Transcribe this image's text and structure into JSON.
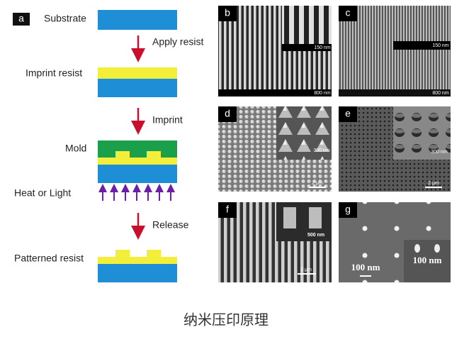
{
  "panel_a": {
    "label": "a",
    "steps": {
      "substrate": "Substrate",
      "apply": "Apply resist",
      "imprint_resist": "Imprint resist",
      "imprint": "Imprint",
      "mold": "Mold",
      "heat": "Heat or Light",
      "release": "Release",
      "patterned": "Patterned resist"
    }
  },
  "panels": [
    {
      "label": "b",
      "inset_scale": "150 nm",
      "scale": "800 nm"
    },
    {
      "label": "c",
      "inset_scale": "150 nm",
      "scale": "800 nm"
    },
    {
      "label": "d",
      "inset_scale": "300 nm",
      "scale": "2 μm"
    },
    {
      "label": "e",
      "inset_scale": "300 nm",
      "scale": "2 μm"
    },
    {
      "label": "f",
      "inset_scale": "500 nm",
      "scale": "2 μm"
    },
    {
      "label": "g",
      "inset_scale": "100 nm",
      "scale": "100 nm"
    }
  ],
  "caption": "纳米压印原理"
}
